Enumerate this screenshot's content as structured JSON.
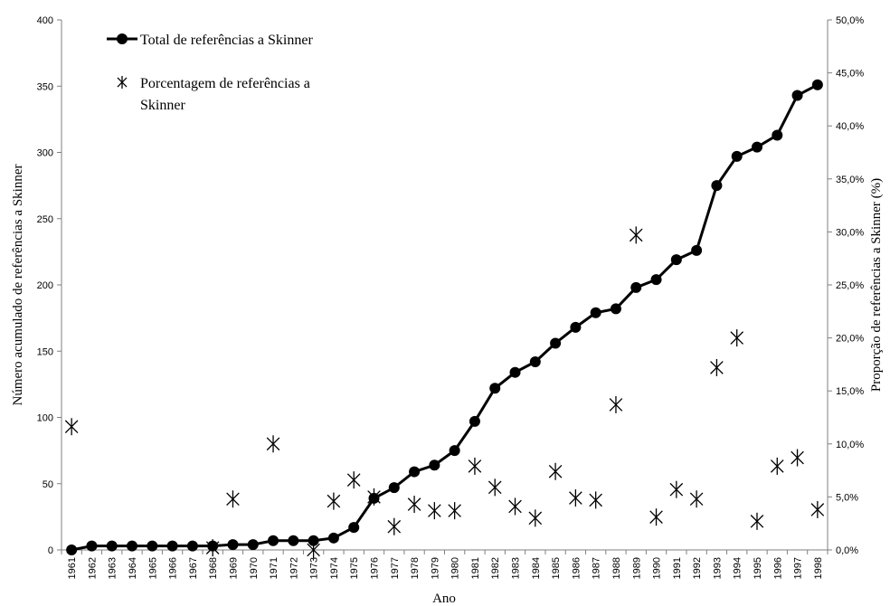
{
  "chart_data": {
    "type": "line",
    "xlabel": "Ano",
    "ylabel": "Número acumulado de referências a Skinner",
    "y2label": "Proporção de referências a Skinner (%)",
    "ylim": [
      0,
      400
    ],
    "y2lim": [
      0,
      0.5
    ],
    "yticks": [
      "0",
      "50",
      "100",
      "150",
      "200",
      "250",
      "300",
      "350",
      "400"
    ],
    "y2ticks": [
      "0,0%",
      "5,0%",
      "10,0%",
      "15,0%",
      "20,0%",
      "25,0%",
      "30,0%",
      "35,0%",
      "40,0%",
      "45,0%",
      "50,0%"
    ],
    "categories": [
      "1961",
      "1962",
      "1963",
      "1964",
      "1965",
      "1966",
      "1967",
      "1968",
      "1969",
      "1970",
      "1971",
      "1972",
      "1973",
      "1974",
      "1975",
      "1976",
      "1977",
      "1978",
      "1979",
      "1980",
      "1981",
      "1982",
      "1983",
      "1984",
      "1985",
      "1986",
      "1987",
      "1988",
      "1989",
      "1990",
      "1991",
      "1992",
      "1993",
      "1994",
      "1995",
      "1996",
      "1997",
      "1998"
    ],
    "legend_position": "top-left",
    "grid": false,
    "series": [
      {
        "name": "Total de referências a Skinner",
        "axis": "left",
        "style": "line-circle",
        "color": "#000000",
        "values": [
          0,
          3,
          3,
          3,
          3,
          3,
          3,
          3,
          4,
          4,
          7,
          7,
          7,
          9,
          17,
          39,
          47,
          59,
          64,
          75,
          97,
          122,
          134,
          142,
          156,
          168,
          179,
          182,
          198,
          204,
          219,
          226,
          275,
          297,
          304,
          313,
          343,
          351
        ]
      },
      {
        "name": "Porcentagem de referências a Skinner",
        "name_lines": [
          "Porcentagem de referências a",
          "Skinner"
        ],
        "axis": "right",
        "style": "star-marker",
        "color": "#000000",
        "values": [
          0.11628,
          null,
          null,
          null,
          null,
          null,
          null,
          0.002,
          0.048,
          null,
          0.1,
          null,
          0.0,
          0.046,
          0.066,
          0.05,
          0.022,
          0.043,
          0.037,
          0.037,
          0.079,
          0.059,
          0.041,
          0.03,
          0.074,
          0.049,
          0.047,
          0.137,
          0.297,
          0.031,
          0.057,
          0.048,
          0.172,
          0.2,
          0.027,
          0.079,
          0.087,
          0.038
        ]
      }
    ]
  }
}
